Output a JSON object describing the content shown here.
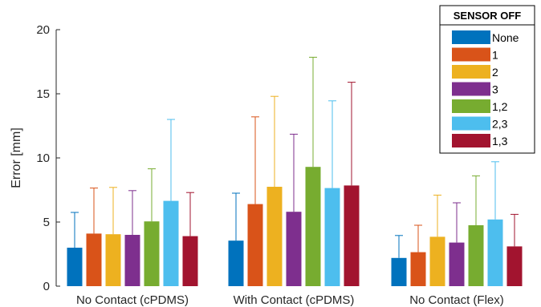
{
  "chart_data": {
    "type": "bar",
    "title": "",
    "xlabel": "",
    "ylabel": "Error [mm]",
    "ylim": [
      0,
      20
    ],
    "yticks": [
      0,
      5,
      10,
      15,
      20
    ],
    "grid": false,
    "error_bars": true,
    "legend_placement": "top-right",
    "legend_title": "SENSOR OFF",
    "categories": [
      "No Contact (cPDMS)",
      "With Contact (cPDMS)",
      "No Contact (Flex)"
    ],
    "series": [
      {
        "name": "None",
        "color": "#0072BD",
        "values": [
          3.0,
          3.55,
          2.2
        ],
        "upper": [
          5.75,
          7.25,
          3.95
        ]
      },
      {
        "name": "1",
        "color": "#D95319",
        "values": [
          4.1,
          6.4,
          2.65
        ],
        "upper": [
          7.65,
          13.2,
          4.75
        ]
      },
      {
        "name": "2",
        "color": "#EDB120",
        "values": [
          4.05,
          7.75,
          3.85
        ],
        "upper": [
          7.7,
          14.8,
          7.1
        ]
      },
      {
        "name": "3",
        "color": "#7E2F8E",
        "values": [
          4.0,
          5.8,
          3.4
        ],
        "upper": [
          7.45,
          11.85,
          6.5
        ]
      },
      {
        "name": "1,2",
        "color": "#77AC30",
        "values": [
          5.05,
          9.3,
          4.75
        ],
        "upper": [
          9.15,
          17.85,
          8.6
        ]
      },
      {
        "name": "2,3",
        "color": "#4DBEEE",
        "values": [
          6.65,
          7.65,
          5.2
        ],
        "upper": [
          13.0,
          14.45,
          9.7
        ]
      },
      {
        "name": "1,3",
        "color": "#A2142F",
        "values": [
          3.9,
          7.85,
          3.1
        ],
        "upper": [
          7.3,
          15.9,
          5.6
        ]
      }
    ]
  }
}
